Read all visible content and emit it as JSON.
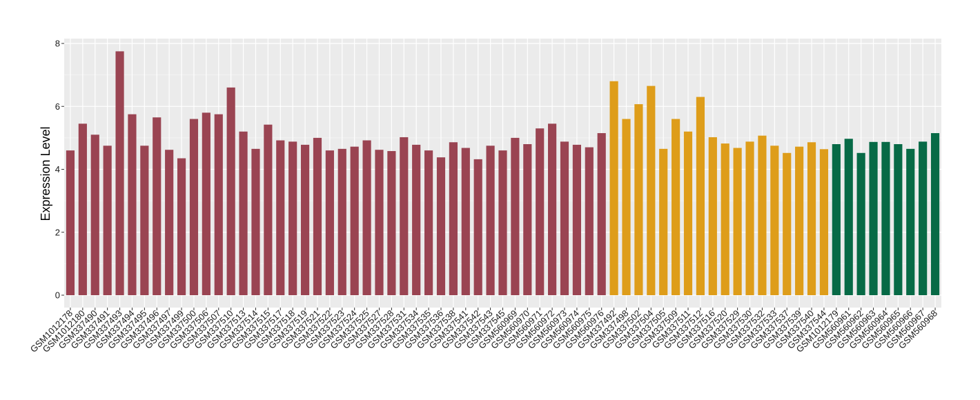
{
  "chart_data": {
    "type": "bar",
    "title": "",
    "xlabel": "",
    "ylabel": "Expression Level",
    "ylim": [
      0,
      8.2
    ],
    "y_ticks": [
      0,
      2,
      4,
      6,
      8
    ],
    "grid": true,
    "legend": "none",
    "colors": {
      "group1": "#9a4452",
      "group2": "#de9d1a",
      "group3": "#076a46",
      "panel_bg": "#ebebeb",
      "grid_major": "#ffffff"
    },
    "categories": [
      "GSM1012178",
      "GSM1012180",
      "GSM337490",
      "GSM337491",
      "GSM337493",
      "GSM337494",
      "GSM337495",
      "GSM337496",
      "GSM337497",
      "GSM337499",
      "GSM337500",
      "GSM337506",
      "GSM337507",
      "GSM337510",
      "GSM337513",
      "GSM337514",
      "GSM337515",
      "GSM337517",
      "GSM337518",
      "GSM337519",
      "GSM337521",
      "GSM337522",
      "GSM337523",
      "GSM337524",
      "GSM337525",
      "GSM337527",
      "GSM337528",
      "GSM337531",
      "GSM337534",
      "GSM337535",
      "GSM337536",
      "GSM337538",
      "GSM337541",
      "GSM337542",
      "GSM337543",
      "GSM337545",
      "GSM560969",
      "GSM560970",
      "GSM560971",
      "GSM560972",
      "GSM560973",
      "GSM560974",
      "GSM560975",
      "GSM560976",
      "GSM337492",
      "GSM337498",
      "GSM337502",
      "GSM337504",
      "GSM337505",
      "GSM337509",
      "GSM337511",
      "GSM337512",
      "GSM337516",
      "GSM337520",
      "GSM337529",
      "GSM337530",
      "GSM337532",
      "GSM337533",
      "GSM337537",
      "GSM337539",
      "GSM337540",
      "GSM337544",
      "GSM1012179",
      "GSM560961",
      "GSM560962",
      "GSM560963",
      "GSM560964",
      "GSM560965",
      "GSM560966",
      "GSM560967",
      "GSM560968"
    ],
    "values": [
      4.6,
      5.45,
      5.1,
      4.75,
      7.75,
      5.75,
      4.75,
      5.65,
      4.62,
      4.35,
      5.6,
      5.8,
      5.75,
      6.6,
      5.2,
      4.65,
      5.42,
      4.92,
      4.88,
      4.78,
      5.0,
      4.6,
      4.65,
      4.72,
      4.92,
      4.62,
      4.58,
      5.02,
      4.78,
      4.6,
      4.38,
      4.86,
      4.68,
      4.32,
      4.75,
      4.6,
      5.0,
      4.8,
      5.3,
      5.45,
      4.88,
      4.78,
      4.7,
      5.15,
      6.8,
      5.6,
      6.07,
      6.65,
      4.65,
      5.6,
      5.2,
      6.3,
      5.02,
      4.82,
      4.68,
      4.88,
      5.07,
      4.75,
      4.52,
      4.72,
      4.86,
      4.64,
      4.8,
      4.97,
      4.52,
      4.87,
      4.87,
      4.8,
      4.65,
      4.88,
      5.15
    ],
    "groups": [
      1,
      1,
      1,
      1,
      1,
      1,
      1,
      1,
      1,
      1,
      1,
      1,
      1,
      1,
      1,
      1,
      1,
      1,
      1,
      1,
      1,
      1,
      1,
      1,
      1,
      1,
      1,
      1,
      1,
      1,
      1,
      1,
      1,
      1,
      1,
      1,
      1,
      1,
      1,
      1,
      1,
      1,
      1,
      1,
      2,
      2,
      2,
      2,
      2,
      2,
      2,
      2,
      2,
      2,
      2,
      2,
      2,
      2,
      2,
      2,
      2,
      2,
      3,
      3,
      3,
      3,
      3,
      3,
      3,
      3,
      3
    ]
  }
}
